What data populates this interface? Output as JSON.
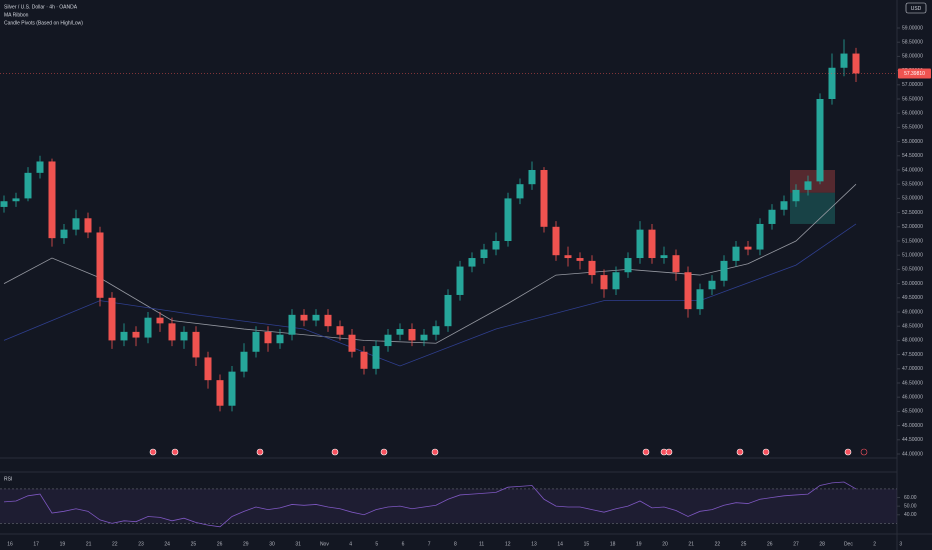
{
  "chart_data": {
    "type": "candlestick",
    "title": "Silver / U.S. Dollar · 4h · OANDA",
    "indicators": [
      "MA Ribbon",
      "Candle Pivots (Based on High/Low)"
    ],
    "currency": "USD",
    "up_color": "#26a69a",
    "down_color": "#ef5350",
    "open": [
      52.7,
      52.9,
      53.0,
      53.9,
      54.3,
      51.6,
      51.9,
      52.3,
      51.8,
      49.5,
      48.0,
      48.3,
      48.1,
      48.8,
      48.6,
      48.0,
      48.3,
      47.4,
      46.6,
      45.7,
      46.9,
      47.6,
      48.3,
      47.9,
      48.2,
      48.9,
      48.7,
      48.9,
      48.5,
      48.2,
      47.6,
      47.0,
      47.8,
      48.2,
      48.4,
      48.0,
      48.2,
      48.5,
      49.6,
      50.6,
      50.9,
      51.2,
      51.5,
      53.0,
      53.5,
      54.0,
      52.0,
      51.0,
      50.9,
      50.8,
      50.3,
      49.8,
      50.4,
      50.9,
      51.9,
      50.9,
      51.0,
      50.4,
      49.1,
      49.8,
      50.1,
      50.8,
      51.3,
      51.2,
      52.1,
      52.6,
      52.9,
      53.3,
      53.6,
      56.5,
      57.6,
      58.1
    ],
    "high": [
      53.1,
      53.2,
      54.1,
      54.5,
      54.4,
      52.1,
      52.6,
      52.5,
      52.0,
      49.7,
      48.6,
      48.5,
      49.0,
      49.0,
      48.8,
      48.5,
      48.5,
      47.6,
      46.8,
      47.1,
      47.9,
      48.5,
      48.5,
      48.4,
      49.1,
      49.1,
      49.1,
      49.1,
      48.7,
      48.4,
      47.8,
      48.0,
      48.4,
      48.6,
      48.6,
      48.4,
      48.7,
      49.8,
      50.8,
      51.1,
      51.4,
      51.8,
      53.2,
      53.7,
      54.3,
      54.1,
      52.2,
      51.3,
      51.1,
      51.0,
      50.5,
      50.6,
      51.1,
      52.2,
      52.1,
      51.3,
      51.2,
      50.6,
      50.0,
      50.3,
      51.0,
      51.5,
      51.5,
      52.3,
      52.8,
      53.1,
      53.5,
      53.8,
      56.7,
      58.1,
      58.6,
      58.3
    ],
    "low": [
      52.5,
      52.7,
      52.9,
      53.7,
      51.3,
      51.4,
      51.7,
      51.6,
      49.2,
      47.7,
      47.8,
      47.8,
      47.9,
      48.3,
      47.8,
      47.7,
      47.1,
      46.3,
      45.5,
      45.5,
      46.7,
      47.4,
      47.6,
      47.7,
      48.0,
      48.5,
      48.5,
      48.3,
      48.0,
      47.4,
      46.8,
      46.8,
      47.6,
      48.0,
      47.8,
      47.8,
      48.0,
      48.3,
      49.4,
      50.4,
      50.7,
      51.0,
      51.3,
      52.8,
      53.3,
      51.8,
      50.8,
      50.6,
      50.5,
      50.0,
      49.5,
      49.6,
      50.2,
      50.7,
      50.7,
      50.7,
      50.1,
      48.8,
      48.9,
      49.6,
      49.9,
      50.6,
      51.0,
      51.0,
      51.9,
      52.4,
      52.7,
      53.1,
      53.5,
      56.3,
      57.3,
      57.1
    ],
    "close": [
      52.9,
      53.0,
      53.9,
      54.3,
      51.6,
      51.9,
      52.3,
      51.8,
      49.5,
      48.0,
      48.3,
      48.1,
      48.8,
      48.6,
      48.0,
      48.3,
      47.4,
      46.6,
      45.7,
      46.9,
      47.6,
      48.3,
      47.9,
      48.2,
      48.9,
      48.7,
      48.9,
      48.5,
      48.2,
      47.6,
      47.0,
      47.8,
      48.2,
      48.4,
      48.0,
      48.2,
      48.5,
      49.6,
      50.6,
      50.9,
      51.2,
      51.5,
      53.0,
      53.5,
      54.0,
      52.0,
      51.0,
      50.9,
      50.8,
      50.3,
      49.8,
      50.4,
      50.9,
      51.9,
      50.9,
      51.0,
      50.4,
      49.1,
      49.8,
      50.1,
      50.8,
      51.3,
      51.2,
      52.1,
      52.6,
      52.9,
      53.3,
      53.6,
      56.5,
      57.6,
      58.1,
      57.4
    ],
    "ma": [
      {
        "color": "#9598a1",
        "x": [
          0,
          4,
          8,
          14,
          20,
          30,
          36,
          42,
          46,
          52,
          58,
          62,
          66,
          71
        ],
        "values": [
          50.0,
          50.9,
          50.2,
          48.7,
          48.4,
          48.0,
          47.9,
          49.3,
          50.3,
          50.5,
          50.3,
          50.7,
          51.5,
          53.5
        ]
      },
      {
        "color": "#2f3f8f",
        "x": [
          0,
          8,
          16,
          25,
          33,
          41,
          50,
          58,
          66,
          71
        ],
        "values": [
          48.0,
          49.4,
          48.9,
          48.4,
          47.1,
          48.4,
          49.4,
          49.4,
          50.65,
          52.1
        ]
      }
    ],
    "position_tool": {
      "stop": 54.0,
      "entry": 53.2,
      "target": 52.1
    },
    "last_price": {
      "value": 57.3981,
      "label": "57.39810"
    },
    "ylim": [
      44,
      59
    ],
    "yticks": [
      {
        "value": 59,
        "label": "59.00000"
      },
      {
        "value": 58.5,
        "label": "58.50000"
      },
      {
        "value": 58,
        "label": "58.00000"
      },
      {
        "value": 57.5,
        "label": "57.50000"
      },
      {
        "value": 57,
        "label": "57.00000"
      },
      {
        "value": 56.5,
        "label": "56.50000"
      },
      {
        "value": 56,
        "label": "56.00000"
      },
      {
        "value": 55.5,
        "label": "55.50000"
      },
      {
        "value": 55,
        "label": "55.00000"
      },
      {
        "value": 54.5,
        "label": "54.50000"
      },
      {
        "value": 54,
        "label": "54.00000"
      },
      {
        "value": 53.5,
        "label": "53.50000"
      },
      {
        "value": 53,
        "label": "53.00000"
      },
      {
        "value": 52.5,
        "label": "52.50000"
      },
      {
        "value": 52,
        "label": "52.00000"
      },
      {
        "value": 51.5,
        "label": "51.50000"
      },
      {
        "value": 51,
        "label": "51.00000"
      },
      {
        "value": 50.5,
        "label": "50.50000"
      },
      {
        "value": 50,
        "label": "50.00000"
      },
      {
        "value": 49.5,
        "label": "49.50000"
      },
      {
        "value": 49,
        "label": "49.00000"
      },
      {
        "value": 48.5,
        "label": "48.50000"
      },
      {
        "value": 48,
        "label": "48.00000"
      },
      {
        "value": 47.5,
        "label": "47.50000"
      },
      {
        "value": 47,
        "label": "47.00000"
      },
      {
        "value": 46.5,
        "label": "46.50000"
      },
      {
        "value": 46,
        "label": "46.00000"
      },
      {
        "value": 45.5,
        "label": "45.50000"
      },
      {
        "value": 45,
        "label": "45.00000"
      },
      {
        "value": 44.5,
        "label": "44.50000"
      },
      {
        "value": 44,
        "label": "44.00000"
      }
    ],
    "time_labels": [
      "16",
      "17",
      "19",
      "21",
      "22",
      "23",
      "24",
      "25",
      "26",
      "29",
      "30",
      "31",
      "Nov",
      "4",
      "5",
      "6",
      "7",
      "8",
      "11",
      "12",
      "13",
      "14",
      "15",
      "18",
      "19",
      "20",
      "21",
      "22",
      "25",
      "26",
      "27",
      "28",
      "Dec",
      "2",
      "3"
    ],
    "rsi": {
      "title": "RSI",
      "color": "#7e57c2",
      "values": [
        55,
        56,
        62,
        64,
        42,
        44,
        47,
        44,
        34,
        30,
        33,
        32,
        38,
        37,
        33,
        36,
        31,
        28,
        26,
        38,
        44,
        49,
        46,
        48,
        52,
        51,
        52,
        49,
        47,
        43,
        40,
        46,
        49,
        50,
        47,
        49,
        51,
        58,
        63,
        64,
        65,
        66,
        72,
        73,
        74,
        58,
        50,
        49,
        49,
        46,
        43,
        47,
        50,
        56,
        48,
        49,
        45,
        38,
        44,
        46,
        51,
        54,
        53,
        58,
        60,
        62,
        63,
        64,
        74,
        77,
        78,
        70
      ],
      "bands": [
        70,
        30
      ],
      "ylim": [
        20,
        85
      ],
      "yticks": [
        {
          "value": 60,
          "label": "60.00"
        },
        {
          "value": 50,
          "label": "50.00"
        },
        {
          "value": 40,
          "label": "40.00"
        }
      ]
    }
  }
}
